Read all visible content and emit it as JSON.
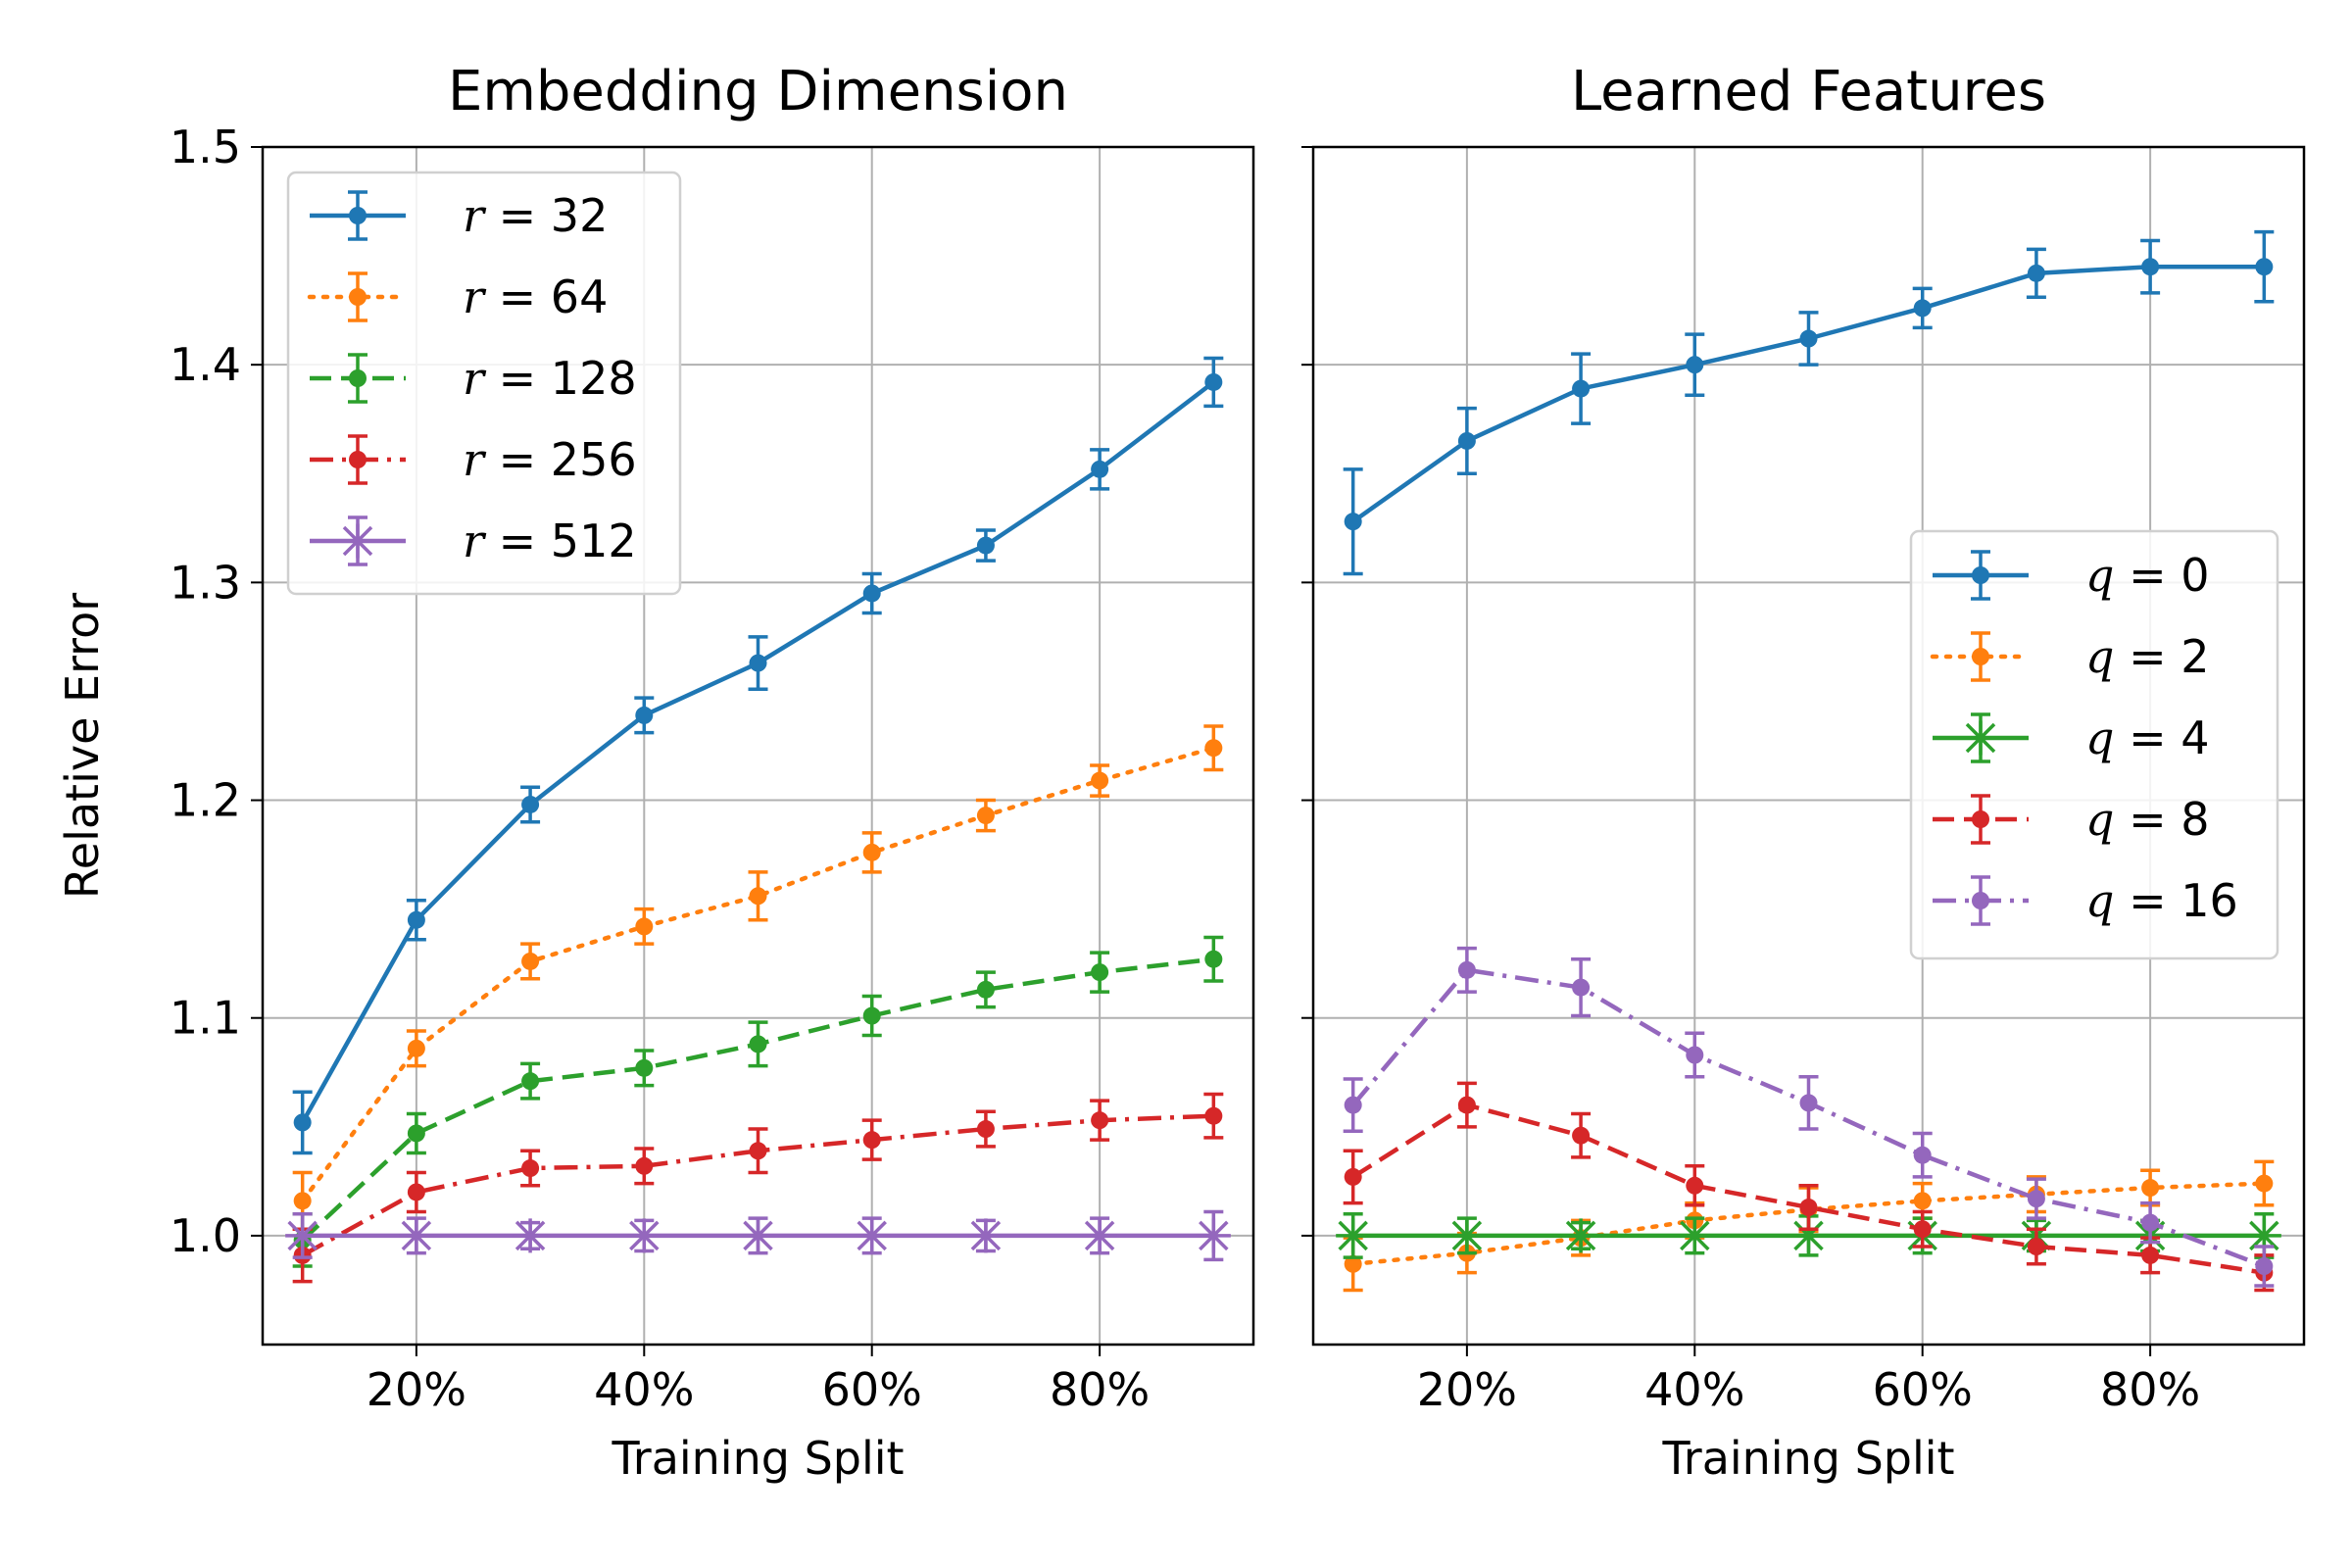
{
  "chart_data": [
    {
      "type": "line",
      "title": "Embedding Dimension",
      "xlabel": "Training Split",
      "ylabel": "Relative Error",
      "x": [
        0.1,
        0.2,
        0.3,
        0.4,
        0.5,
        0.6,
        0.7,
        0.8,
        0.9
      ],
      "xlim": [
        0.065,
        0.935
      ],
      "ylim": [
        0.95,
        1.5
      ],
      "xticks": [
        0.2,
        0.4,
        0.6,
        0.8
      ],
      "xtick_labels": [
        "20%",
        "40%",
        "60%",
        "80%"
      ],
      "yticks": [
        1.0,
        1.1,
        1.2,
        1.3,
        1.4,
        1.5
      ],
      "ytick_labels": [
        "1.0",
        "1.1",
        "1.2",
        "1.3",
        "1.4",
        "1.5"
      ],
      "grid": true,
      "legend_position": "top-left",
      "series": [
        {
          "name": "r = 32",
          "var": "r",
          "num": "32",
          "color": "#1f77b4",
          "linestyle": "solid",
          "marker": "dot",
          "values": [
            1.052,
            1.145,
            1.198,
            1.239,
            1.263,
            1.295,
            1.317,
            1.352,
            1.392
          ],
          "errors": [
            0.014,
            0.009,
            0.008,
            0.008,
            0.012,
            0.009,
            0.007,
            0.009,
            0.011
          ]
        },
        {
          "name": "r = 64",
          "var": "r",
          "num": "64",
          "color": "#ff7f0e",
          "linestyle": "dotted",
          "marker": "dot",
          "values": [
            1.016,
            1.086,
            1.126,
            1.142,
            1.156,
            1.176,
            1.193,
            1.209,
            1.224
          ],
          "errors": [
            0.013,
            0.008,
            0.008,
            0.008,
            0.011,
            0.009,
            0.007,
            0.007,
            0.01
          ]
        },
        {
          "name": "r = 128",
          "var": "r",
          "num": "128",
          "color": "#2ca02c",
          "linestyle": "dashed",
          "marker": "dot",
          "values": [
            0.998,
            1.047,
            1.071,
            1.077,
            1.088,
            1.101,
            1.113,
            1.121,
            1.127
          ],
          "errors": [
            0.012,
            0.009,
            0.008,
            0.008,
            0.01,
            0.009,
            0.008,
            0.009,
            0.01
          ]
        },
        {
          "name": "r = 256",
          "var": "r",
          "num": "256",
          "color": "#d62728",
          "linestyle": "dashdot",
          "marker": "dot",
          "values": [
            0.991,
            1.02,
            1.031,
            1.032,
            1.039,
            1.044,
            1.049,
            1.053,
            1.055
          ],
          "errors": [
            0.012,
            0.009,
            0.008,
            0.008,
            0.01,
            0.009,
            0.008,
            0.009,
            0.01
          ]
        },
        {
          "name": "r = 512",
          "var": "r",
          "num": "512",
          "color": "#9467bd",
          "linestyle": "solid",
          "marker": "x",
          "values": [
            1.0,
            1.0,
            1.0,
            1.0,
            1.0,
            1.0,
            1.0,
            1.0,
            1.0
          ],
          "errors": [
            0.01,
            0.008,
            0.006,
            0.007,
            0.008,
            0.008,
            0.007,
            0.008,
            0.011
          ]
        }
      ]
    },
    {
      "type": "line",
      "title": "Learned Features",
      "xlabel": "Training Split",
      "ylabel": "",
      "x": [
        0.1,
        0.2,
        0.3,
        0.4,
        0.5,
        0.6,
        0.7,
        0.8,
        0.9
      ],
      "xlim": [
        0.065,
        0.935
      ],
      "ylim": [
        0.95,
        1.5
      ],
      "xticks": [
        0.2,
        0.4,
        0.6,
        0.8
      ],
      "xtick_labels": [
        "20%",
        "40%",
        "60%",
        "80%"
      ],
      "yticks": [
        1.0,
        1.1,
        1.2,
        1.3,
        1.4,
        1.5
      ],
      "ytick_labels": [],
      "grid": true,
      "legend_position": "center-right",
      "series": [
        {
          "name": "q = 0",
          "var": "q",
          "num": "0",
          "color": "#1f77b4",
          "linestyle": "solid",
          "marker": "dot",
          "values": [
            1.328,
            1.365,
            1.389,
            1.4,
            1.412,
            1.426,
            1.442,
            1.445,
            1.445
          ],
          "errors": [
            0.024,
            0.015,
            0.016,
            0.014,
            0.012,
            0.009,
            0.011,
            0.012,
            0.016
          ]
        },
        {
          "name": "q = 2",
          "var": "q",
          "num": "2",
          "color": "#ff7f0e",
          "linestyle": "dotted",
          "marker": "dot",
          "values": [
            0.987,
            0.992,
            0.999,
            1.007,
            1.012,
            1.016,
            1.019,
            1.022,
            1.024
          ],
          "errors": [
            0.012,
            0.009,
            0.008,
            0.008,
            0.01,
            0.008,
            0.008,
            0.008,
            0.01
          ]
        },
        {
          "name": "q = 4",
          "var": "q",
          "num": "4",
          "color": "#2ca02c",
          "linestyle": "solid",
          "marker": "x",
          "values": [
            1.0,
            1.0,
            1.0,
            1.0,
            1.0,
            1.0,
            1.0,
            1.0,
            1.0
          ],
          "errors": [
            0.01,
            0.008,
            0.006,
            0.008,
            0.009,
            0.008,
            0.007,
            0.007,
            0.01
          ]
        },
        {
          "name": "q = 8",
          "var": "q",
          "num": "8",
          "color": "#d62728",
          "linestyle": "dashed",
          "marker": "dot",
          "values": [
            1.027,
            1.06,
            1.046,
            1.023,
            1.013,
            1.003,
            0.995,
            0.991,
            0.983
          ],
          "errors": [
            0.012,
            0.01,
            0.01,
            0.009,
            0.01,
            0.008,
            0.008,
            0.008,
            0.008
          ]
        },
        {
          "name": "q = 16",
          "var": "q",
          "num": "16",
          "color": "#9467bd",
          "linestyle": "dashdot",
          "marker": "dot",
          "values": [
            1.06,
            1.122,
            1.114,
            1.083,
            1.061,
            1.037,
            1.017,
            1.006,
            0.986
          ],
          "errors": [
            0.012,
            0.01,
            0.013,
            0.01,
            0.012,
            0.01,
            0.009,
            0.009,
            0.009
          ]
        }
      ]
    }
  ]
}
